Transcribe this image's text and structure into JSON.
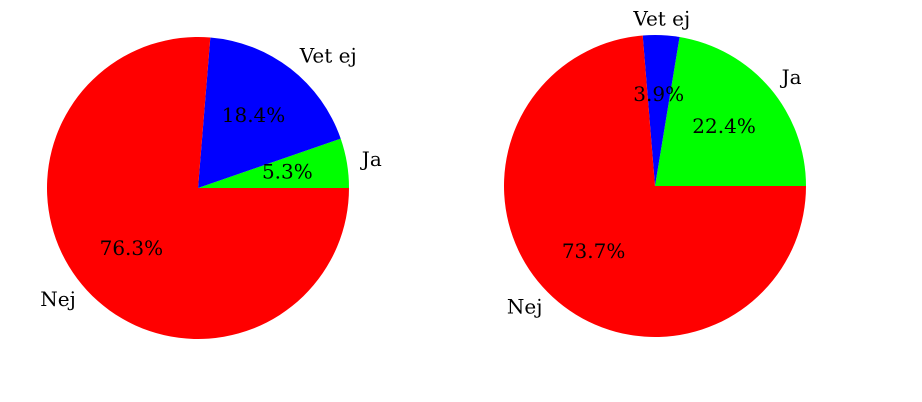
{
  "colors": {
    "Ja": "#00ff00",
    "Nej": "#ff0000",
    "Vet ej": "#0000ff"
  },
  "chart_data": [
    {
      "type": "pie",
      "slices": [
        {
          "label": "Ja",
          "value": 5.3,
          "pct_label": "5.3%"
        },
        {
          "label": "Vet ej",
          "value": 18.4,
          "pct_label": "18.4%"
        },
        {
          "label": "Nej",
          "value": 76.3,
          "pct_label": "76.3%"
        }
      ]
    },
    {
      "type": "pie",
      "slices": [
        {
          "label": "Ja",
          "value": 22.4,
          "pct_label": "22.4%"
        },
        {
          "label": "Vet ej",
          "value": 3.9,
          "pct_label": "3.9%"
        },
        {
          "label": "Nej",
          "value": 73.7,
          "pct_label": "73.7%"
        }
      ]
    }
  ]
}
